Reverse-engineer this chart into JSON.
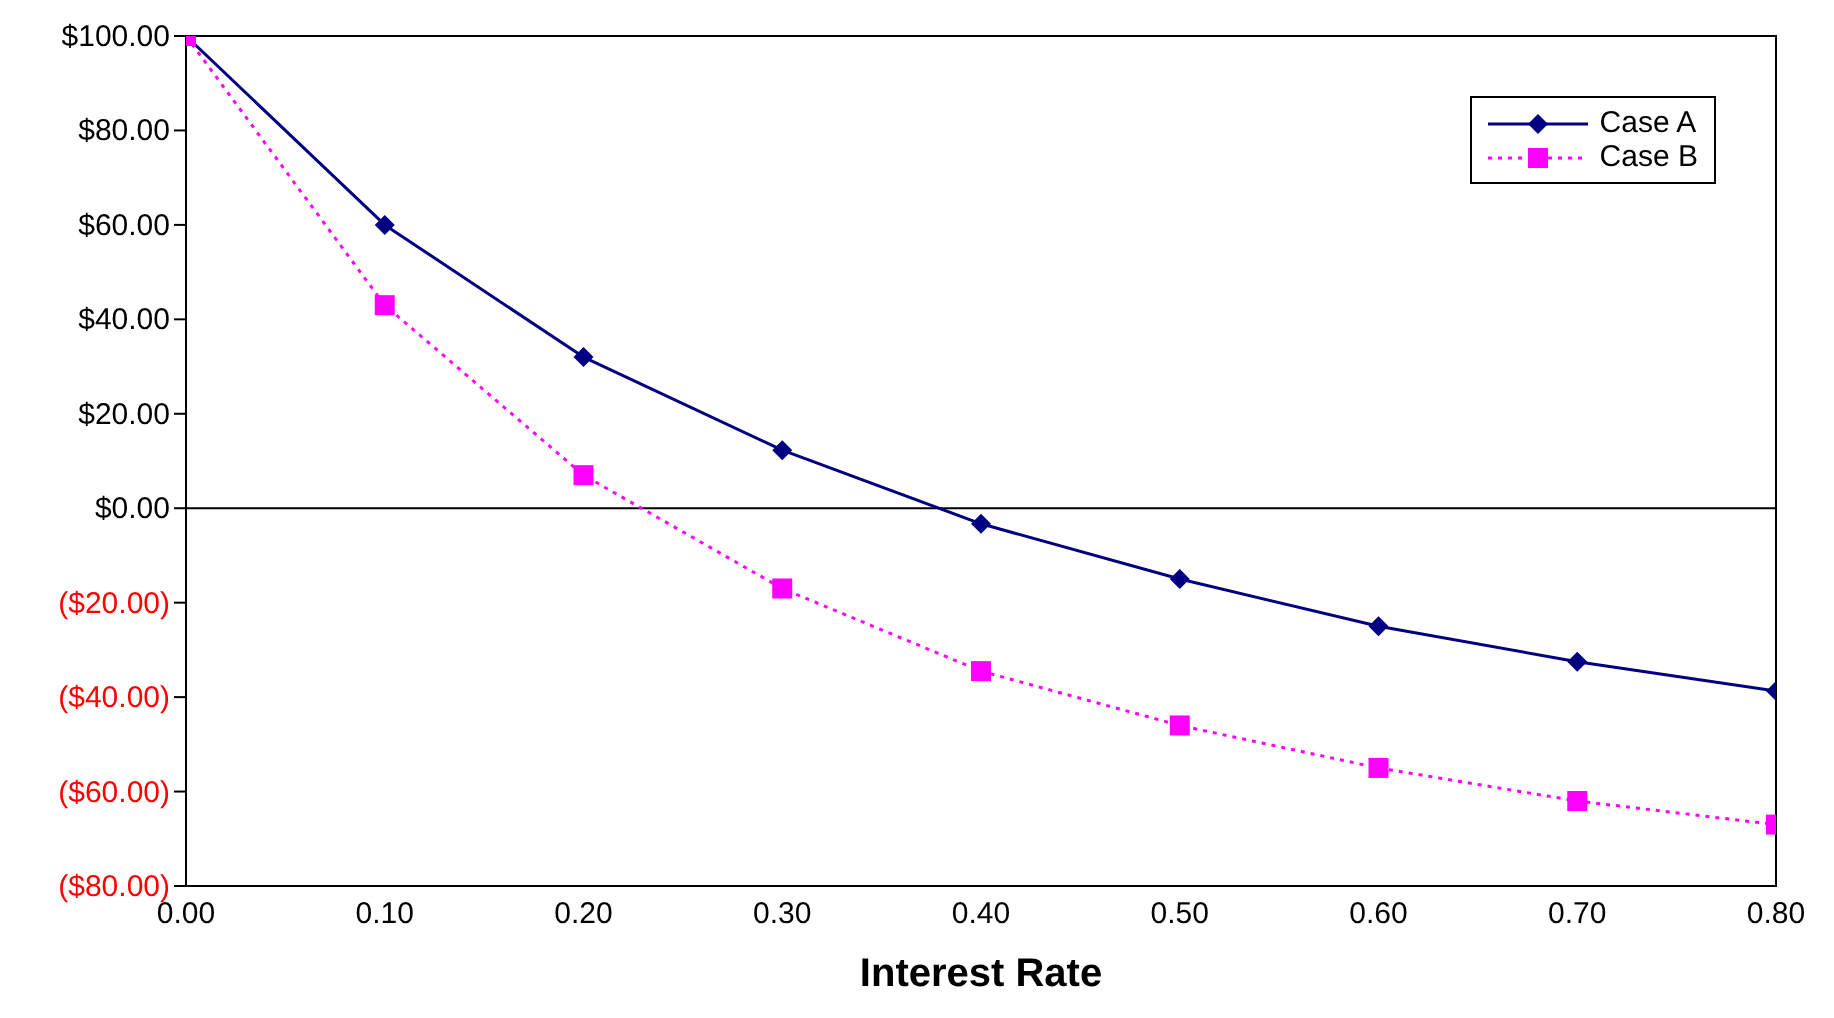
{
  "chart_data": {
    "type": "line",
    "xlabel": "Interest Rate",
    "x": [
      0,
      0.1,
      0.2,
      0.3,
      0.4,
      0.5,
      0.6,
      0.7,
      0.8
    ],
    "series": [
      {
        "name": "Case A",
        "color": "#000080",
        "marker": "diamond",
        "line_style": "solid",
        "values": [
          100,
          60,
          32,
          12.3,
          -3.3,
          -15,
          -25,
          -32.5,
          -38.7
        ]
      },
      {
        "name": "Case B",
        "color": "#ff00ff",
        "marker": "square",
        "line_style": "dotted",
        "values": [
          100,
          43,
          7,
          -17,
          -34.5,
          -46,
          -55,
          -62,
          -67
        ]
      }
    ],
    "xlim": [
      0,
      0.8
    ],
    "xticks": [
      {
        "value": 0,
        "label": "0.00"
      },
      {
        "value": 0.1,
        "label": "0.10"
      },
      {
        "value": 0.2,
        "label": "0.20"
      },
      {
        "value": 0.3,
        "label": "0.30"
      },
      {
        "value": 0.4,
        "label": "0.40"
      },
      {
        "value": 0.5,
        "label": "0.50"
      },
      {
        "value": 0.6,
        "label": "0.60"
      },
      {
        "value": 0.7,
        "label": "0.70"
      },
      {
        "value": 0.8,
        "label": "0.80"
      }
    ],
    "ylim": [
      -80,
      100
    ],
    "yticks": [
      {
        "value": -80,
        "label": "($80.00)"
      },
      {
        "value": -60,
        "label": "($60.00)"
      },
      {
        "value": -40,
        "label": "($40.00)"
      },
      {
        "value": -20,
        "label": "($20.00)"
      },
      {
        "value": 0,
        "label": "$0.00"
      },
      {
        "value": 20,
        "label": "$20.00"
      },
      {
        "value": 40,
        "label": "$40.00"
      },
      {
        "value": 60,
        "label": "$60.00"
      },
      {
        "value": 80,
        "label": "$80.00"
      },
      {
        "value": 100,
        "label": "$100.00"
      }
    ],
    "ref_lines": [
      {
        "axis": "y",
        "value": 0,
        "color": "#000000",
        "line_style": "solid"
      }
    ],
    "grid": false,
    "legend": "top right"
  }
}
